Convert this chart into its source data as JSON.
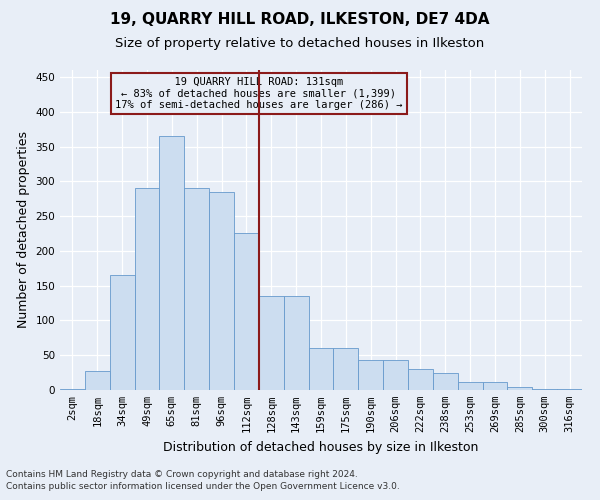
{
  "title": "19, QUARRY HILL ROAD, ILKESTON, DE7 4DA",
  "subtitle": "Size of property relative to detached houses in Ilkeston",
  "xlabel": "Distribution of detached houses by size in Ilkeston",
  "ylabel": "Number of detached properties",
  "categories": [
    "2sqm",
    "18sqm",
    "34sqm",
    "49sqm",
    "65sqm",
    "81sqm",
    "96sqm",
    "112sqm",
    "128sqm",
    "143sqm",
    "159sqm",
    "175sqm",
    "190sqm",
    "206sqm",
    "222sqm",
    "238sqm",
    "253sqm",
    "269sqm",
    "285sqm",
    "300sqm",
    "316sqm"
  ],
  "values": [
    1,
    28,
    165,
    290,
    365,
    290,
    285,
    225,
    135,
    135,
    60,
    60,
    43,
    43,
    30,
    24,
    11,
    11,
    5,
    2,
    1
  ],
  "bar_color": "#ccddf0",
  "bar_edge_color": "#6699cc",
  "vline_x_index": 8,
  "vline_color": "#8b1a1a",
  "annotation_text": "  19 QUARRY HILL ROAD: 131sqm  \n← 83% of detached houses are smaller (1,399)\n17% of semi-detached houses are larger (286) →",
  "annotation_box_color": "#8b1a1a",
  "ylim": [
    0,
    460
  ],
  "yticks": [
    0,
    50,
    100,
    150,
    200,
    250,
    300,
    350,
    400,
    450
  ],
  "footer1": "Contains HM Land Registry data © Crown copyright and database right 2024.",
  "footer2": "Contains public sector information licensed under the Open Government Licence v3.0.",
  "bg_color": "#e8eef7",
  "grid_color": "#d0d8e8",
  "title_fontsize": 11,
  "subtitle_fontsize": 9.5,
  "tick_fontsize": 7.5,
  "label_fontsize": 9,
  "footer_fontsize": 6.5
}
